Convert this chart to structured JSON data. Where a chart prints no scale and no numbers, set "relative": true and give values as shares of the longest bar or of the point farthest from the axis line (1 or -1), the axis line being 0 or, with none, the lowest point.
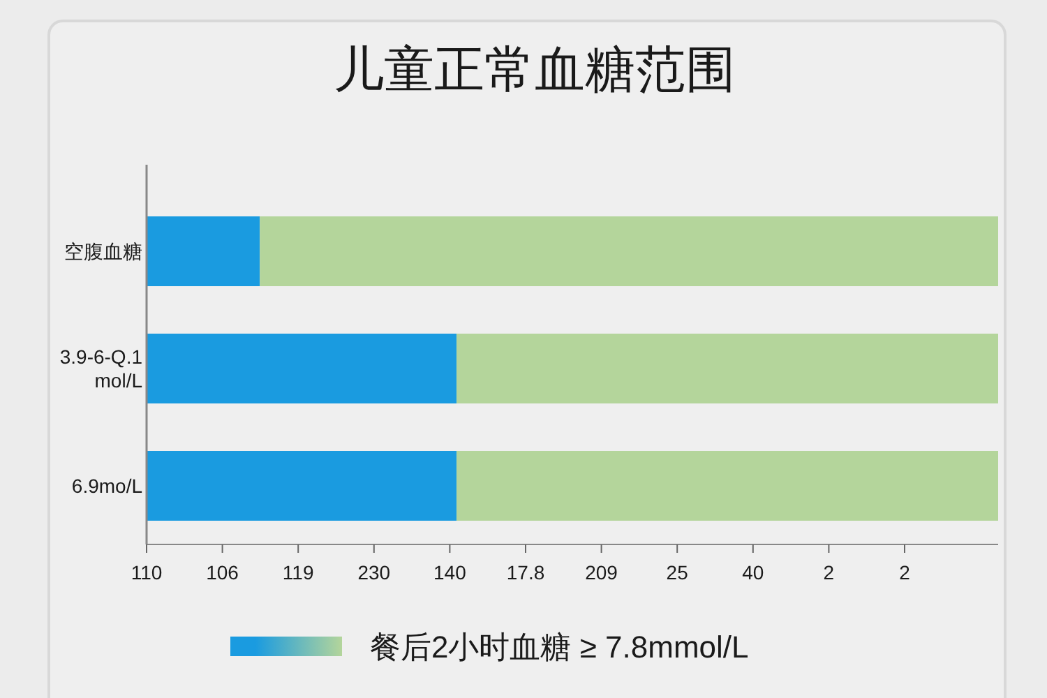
{
  "chart_data": {
    "type": "bar",
    "orientation": "horizontal",
    "stacked": true,
    "relative": true,
    "title": "儿童正常血糖范围",
    "categories": [
      "空腹血糖",
      "3.9-6-Q.1\nmol/L",
      "6.9mo/L"
    ],
    "series": [
      {
        "color": "#1a9be0",
        "values": [
          0.133,
          0.364,
          0.364
        ]
      },
      {
        "name": "餐后2小时血糖 ≥ 7.8mmol/L",
        "color": "#b4d59b",
        "values": [
          0.867,
          0.636,
          0.636
        ]
      }
    ],
    "annotations": [
      "110",
      "106",
      "119",
      "230",
      "140",
      "17.8",
      "209",
      "25",
      "40",
      "2",
      "2"
    ],
    "legend": "bottom"
  }
}
